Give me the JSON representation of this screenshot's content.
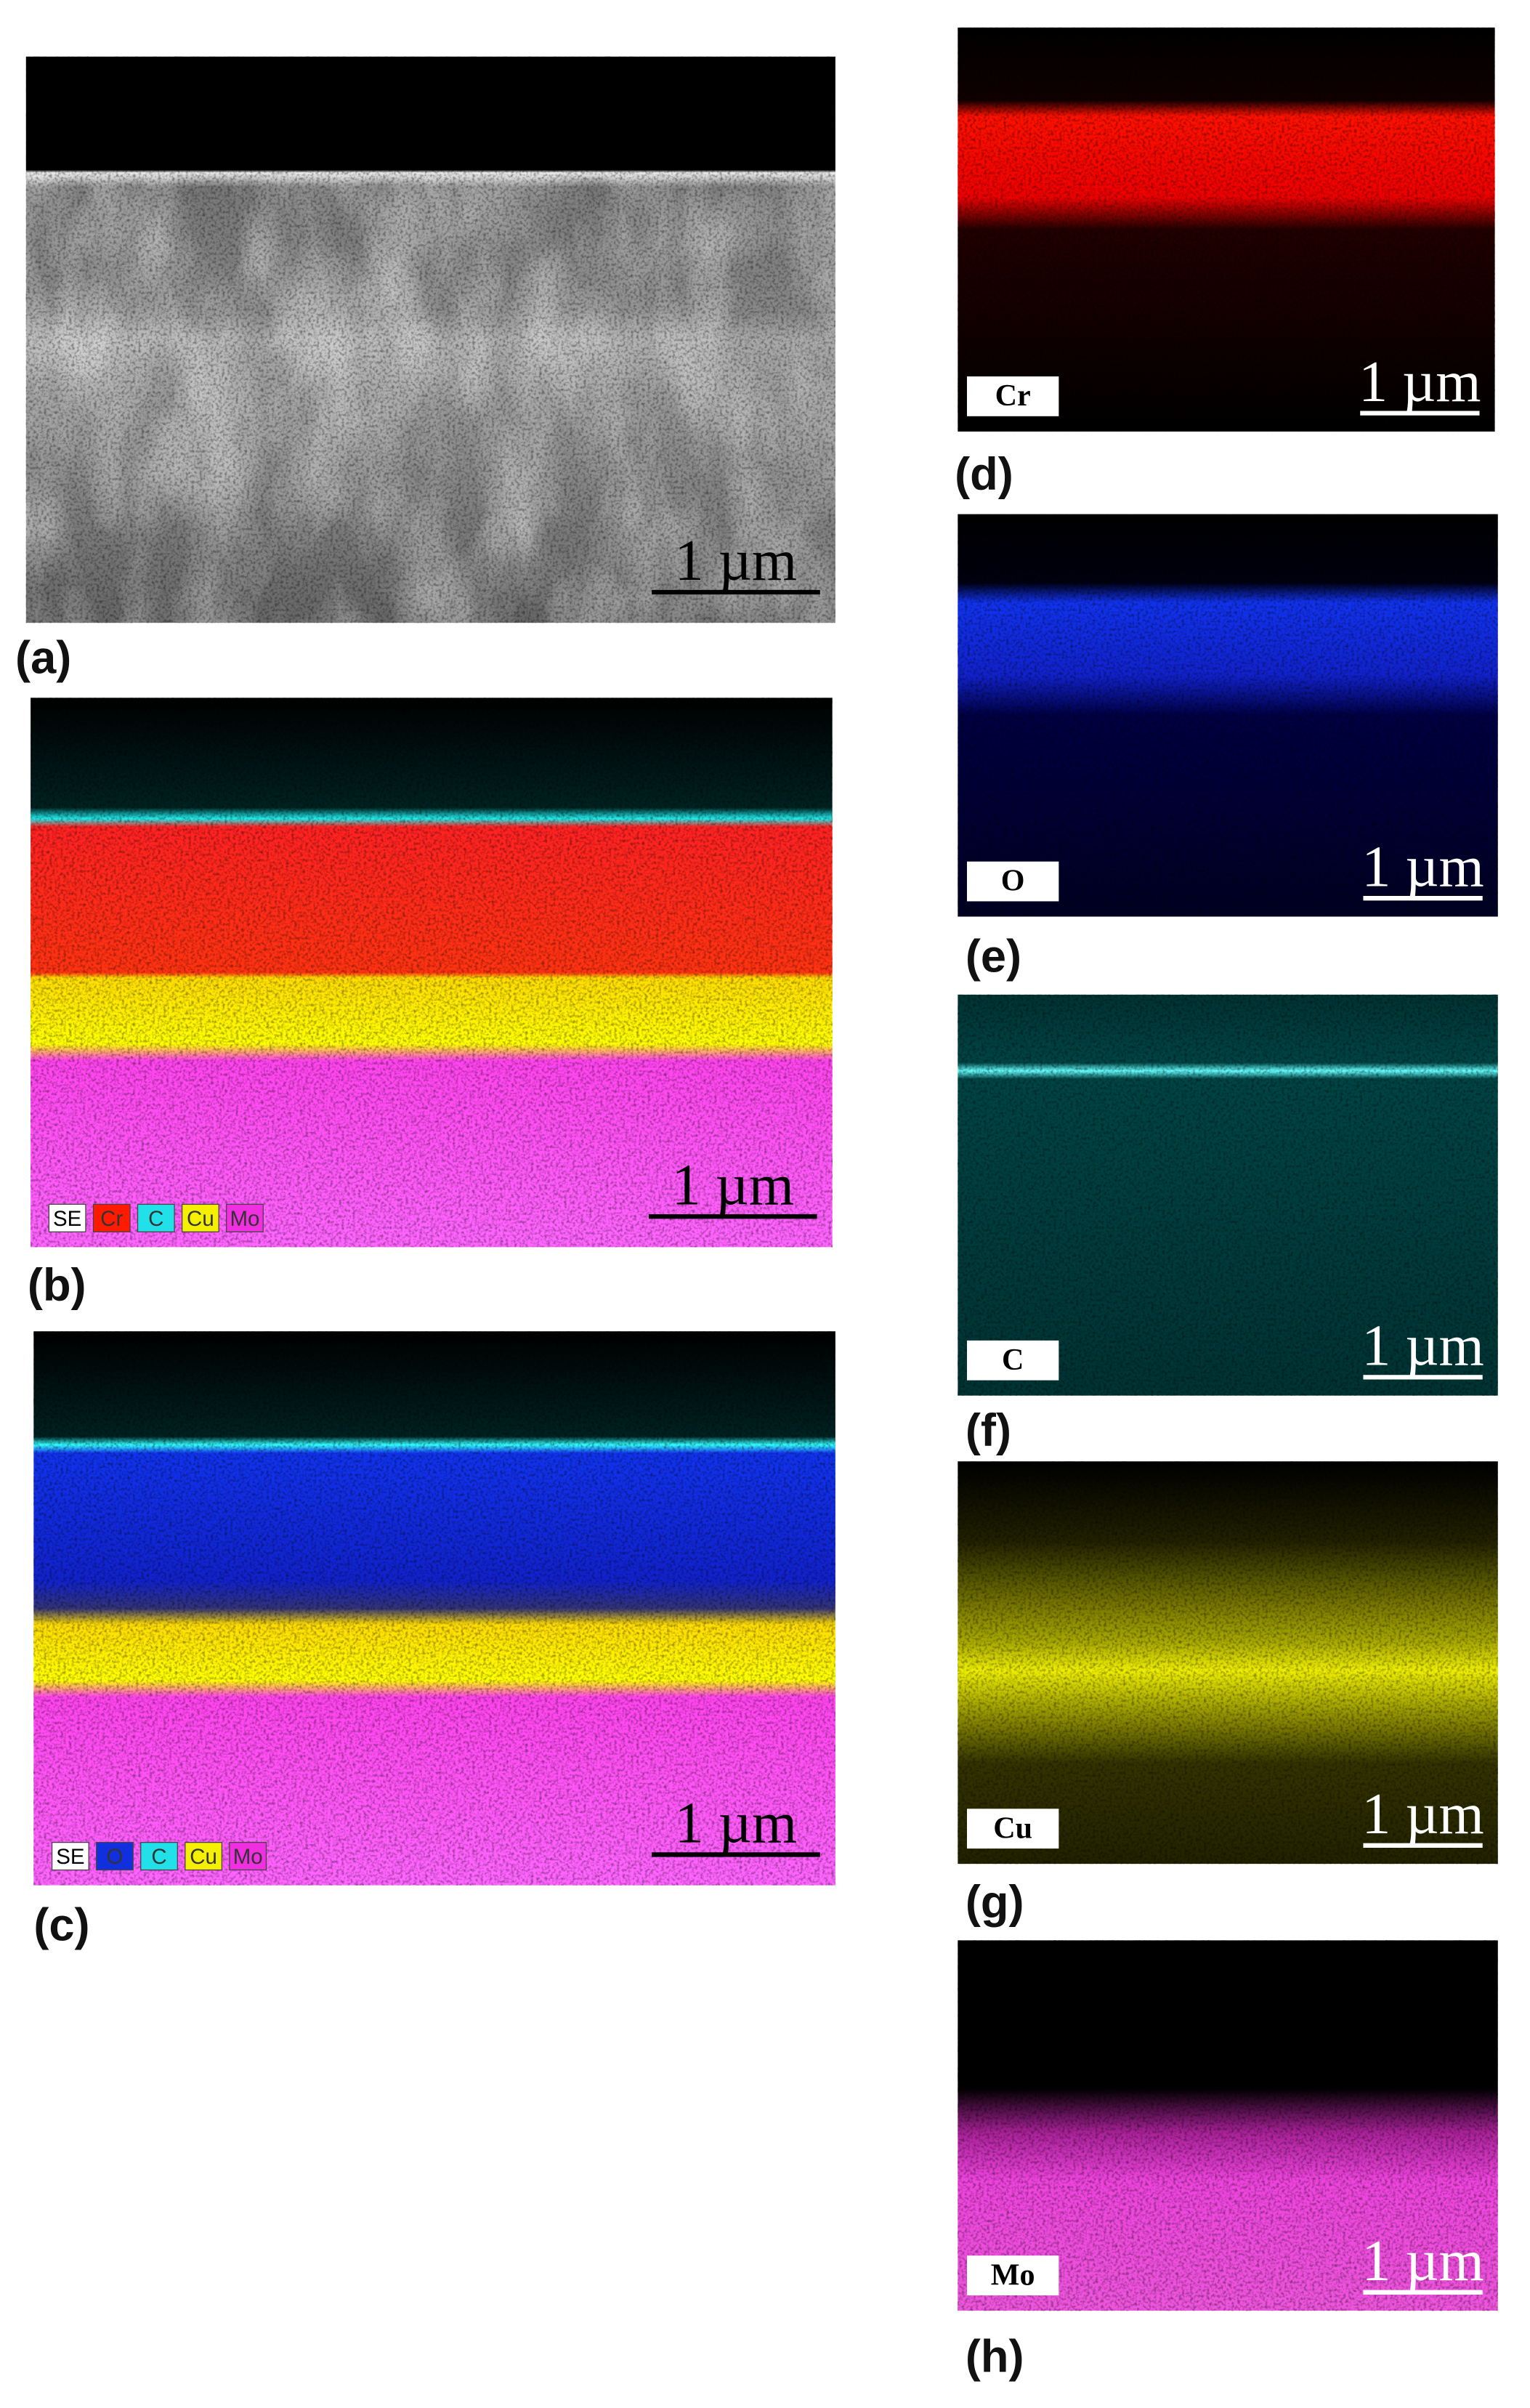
{
  "panels": [
    {
      "label": "(a)",
      "scale_bar": "1 µm"
    },
    {
      "label": "(b)",
      "scale_bar": "1 µm",
      "legend": [
        {
          "text": "SE",
          "color": "#ffffff"
        },
        {
          "text": "Cr",
          "color": "#ff1a00"
        },
        {
          "text": "C",
          "color": "#22e0e8"
        },
        {
          "text": "Cu",
          "color": "#f5f000"
        },
        {
          "text": "Mo",
          "color": "#f030e0"
        }
      ]
    },
    {
      "label": "(c)",
      "scale_bar": "1 µm",
      "legend": [
        {
          "text": "SE",
          "color": "#ffffff"
        },
        {
          "text": "O",
          "color": "#1030e0"
        },
        {
          "text": "C",
          "color": "#22e0e8"
        },
        {
          "text": "Cu",
          "color": "#f5f000"
        },
        {
          "text": "Mo",
          "color": "#f030e0"
        }
      ]
    },
    {
      "label": "(d)",
      "element": "Cr",
      "scale_bar": "1 µm"
    },
    {
      "label": "(e)",
      "element": "O",
      "scale_bar": "1 µm"
    },
    {
      "label": "(f)",
      "element": "C",
      "scale_bar": "1 µm"
    },
    {
      "label": "(g)",
      "element": "Cu",
      "scale_bar": "1 µm"
    },
    {
      "label": "(h)",
      "element": "Mo",
      "scale_bar": "1 µm"
    }
  ]
}
